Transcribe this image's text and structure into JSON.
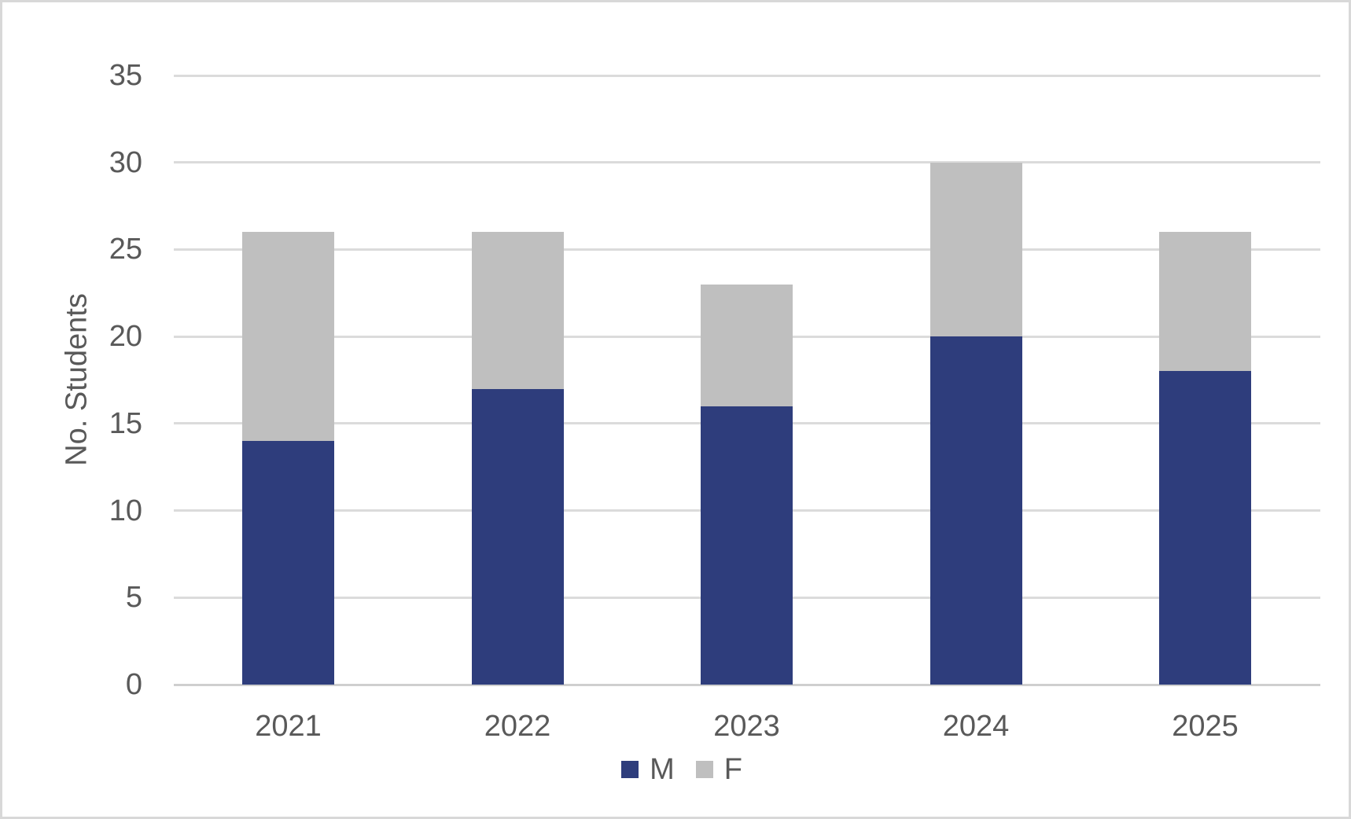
{
  "chart_data": {
    "type": "bar",
    "stacked": true,
    "title": "",
    "categories": [
      "2021",
      "2022",
      "2023",
      "2024",
      "2025"
    ],
    "series": [
      {
        "name": "M",
        "color": "#2E3D7C",
        "values": [
          14,
          17,
          16,
          20,
          18
        ]
      },
      {
        "name": "F",
        "color": "#BFBFBF",
        "values": [
          12,
          9,
          7,
          10,
          8
        ]
      }
    ],
    "totals": [
      26,
      26,
      23,
      30,
      26
    ],
    "xlabel": "",
    "ylabel": "No. Students",
    "ylim": [
      0,
      35
    ],
    "yticks": [
      0,
      5,
      10,
      15,
      20,
      25,
      30,
      35
    ],
    "grid": true,
    "legend_position": "bottom",
    "colors": {
      "text": "#595959",
      "gridline": "#DBDBDB",
      "axis_line": "#CFCFCF",
      "background": "#FFFFFF",
      "border": "#D8D8D8"
    }
  }
}
